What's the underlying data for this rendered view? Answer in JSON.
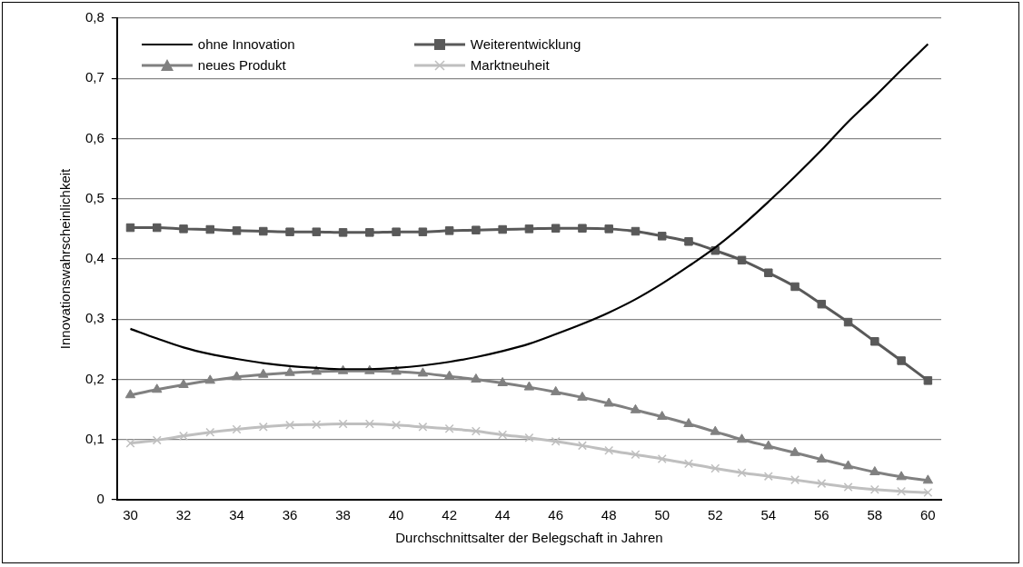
{
  "chart_data": {
    "type": "line",
    "xlabel": "Durchschnittsalter der Belegschaft in Jahren",
    "ylabel": "Innovationswahrscheinlichkeit",
    "x": [
      30,
      31,
      32,
      33,
      34,
      35,
      36,
      37,
      38,
      39,
      40,
      41,
      42,
      43,
      44,
      45,
      46,
      47,
      48,
      49,
      50,
      51,
      52,
      53,
      54,
      55,
      56,
      57,
      58,
      59,
      60
    ],
    "xlim": [
      29.5,
      60.5
    ],
    "xticks": [
      30,
      32,
      34,
      36,
      38,
      40,
      42,
      44,
      46,
      48,
      50,
      52,
      54,
      56,
      58,
      60
    ],
    "ylim": [
      0,
      0.8
    ],
    "yticks": [
      0,
      {
        "value": 0.1,
        "label": "0,1"
      },
      {
        "value": 0.2,
        "label": "0,2"
      },
      {
        "value": 0.3,
        "label": "0,3"
      },
      {
        "value": 0.4,
        "label": "0,4"
      },
      {
        "value": 0.5,
        "label": "0,5"
      },
      {
        "value": 0.6,
        "label": "0,6"
      },
      {
        "value": 0.7,
        "label": "0,7"
      },
      {
        "value": 0.8,
        "label": "0,8"
      }
    ],
    "grid": "y",
    "legend": "top left",
    "series": [
      {
        "name": "ohne Innovation",
        "color": "#000000",
        "marker": "none",
        "values": [
          0.284,
          0.268,
          0.253,
          0.242,
          0.234,
          0.227,
          0.222,
          0.219,
          0.217,
          0.217,
          0.219,
          0.223,
          0.229,
          0.237,
          0.247,
          0.259,
          0.275,
          0.292,
          0.311,
          0.333,
          0.359,
          0.388,
          0.419,
          0.455,
          0.495,
          0.537,
          0.581,
          0.628,
          0.67,
          0.714,
          0.757
        ]
      },
      {
        "name": "Weiterentwicklung",
        "color": "#595959",
        "marker": "square",
        "values": [
          0.452,
          0.452,
          0.45,
          0.449,
          0.447,
          0.446,
          0.445,
          0.445,
          0.444,
          0.444,
          0.445,
          0.445,
          0.447,
          0.448,
          0.449,
          0.45,
          0.451,
          0.451,
          0.45,
          0.446,
          0.438,
          0.429,
          0.414,
          0.398,
          0.377,
          0.354,
          0.325,
          0.295,
          0.263,
          0.231,
          0.198
        ]
      },
      {
        "name": "neues Produkt",
        "color": "#808080",
        "marker": "triangle",
        "values": [
          0.174,
          0.183,
          0.191,
          0.198,
          0.204,
          0.208,
          0.211,
          0.213,
          0.214,
          0.214,
          0.213,
          0.21,
          0.205,
          0.2,
          0.194,
          0.187,
          0.179,
          0.17,
          0.16,
          0.149,
          0.138,
          0.126,
          0.113,
          0.1,
          0.089,
          0.078,
          0.067,
          0.056,
          0.046,
          0.038,
          0.032
        ]
      },
      {
        "name": "Marktneuheit",
        "color": "#bfbfbf",
        "marker": "cross",
        "values": [
          0.094,
          0.099,
          0.106,
          0.112,
          0.117,
          0.121,
          0.124,
          0.125,
          0.126,
          0.126,
          0.124,
          0.121,
          0.118,
          0.114,
          0.108,
          0.103,
          0.097,
          0.09,
          0.082,
          0.075,
          0.068,
          0.06,
          0.052,
          0.045,
          0.039,
          0.033,
          0.027,
          0.021,
          0.017,
          0.014,
          0.012
        ]
      }
    ]
  }
}
